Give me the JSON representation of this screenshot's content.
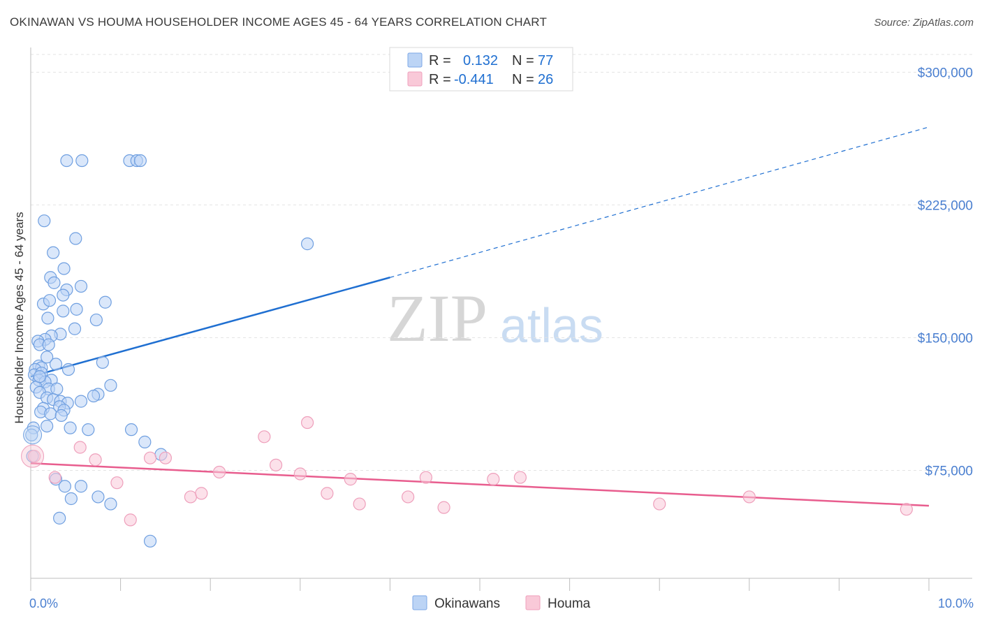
{
  "title": "OKINAWAN VS HOUMA HOUSEHOLDER INCOME AGES 45 - 64 YEARS CORRELATION CHART",
  "source": "Source: ZipAtlas.com",
  "watermark": {
    "zip": "ZIP",
    "atlas": "atlas"
  },
  "colors": {
    "blue": "#1f6fd1",
    "blue_fill": "#bcd4f5",
    "pink": "#e85d8e",
    "pink_fill": "#f9c9d8",
    "axis_text": "#4a7fd0",
    "grid": "#e3e3e3"
  },
  "legend": {
    "rows": [
      {
        "r_label": "R =",
        "r_value": "0.132",
        "n_label": "N =",
        "n_value": "77",
        "series": "blue"
      },
      {
        "r_label": "R =",
        "r_value": "-0.441",
        "n_label": "N =",
        "n_value": "26",
        "series": "pink"
      }
    ]
  },
  "chart_data": {
    "type": "scatter",
    "title": "OKINAWAN VS HOUMA HOUSEHOLDER INCOME AGES 45 - 64 YEARS CORRELATION CHART",
    "xlabel": "",
    "ylabel": "Householder Income Ages 45 - 64 years",
    "xlim": [
      0,
      10
    ],
    "ylim": [
      14000,
      310000
    ],
    "x_tick_labels": [
      "0.0%",
      "10.0%"
    ],
    "y_ticks": [
      75000,
      150000,
      225000,
      300000
    ],
    "y_tick_labels": [
      "$75,000",
      "$150,000",
      "$225,000",
      "$300,000"
    ],
    "grid": true,
    "legend_placement": "bottom-center",
    "series": [
      {
        "name": "Okinawans",
        "color": "#1f6fd1",
        "r": 0.132,
        "n": 77,
        "trend": {
          "x0": 0.0,
          "y0": 128000,
          "x1": 4.0,
          "y1": 184000,
          "dashed_to_x": 10.0,
          "dashed_to_y": 269000
        },
        "points": [
          [
            0.4,
            250000
          ],
          [
            0.57,
            250000
          ],
          [
            1.1,
            250000
          ],
          [
            1.18,
            250000
          ],
          [
            1.22,
            250000
          ],
          [
            0.15,
            216000
          ],
          [
            0.5,
            206000
          ],
          [
            0.25,
            198000
          ],
          [
            3.08,
            203000
          ],
          [
            0.37,
            189000
          ],
          [
            0.22,
            184000
          ],
          [
            0.26,
            181000
          ],
          [
            0.56,
            179000
          ],
          [
            0.4,
            177000
          ],
          [
            0.36,
            174000
          ],
          [
            0.14,
            169000
          ],
          [
            0.21,
            171000
          ],
          [
            0.83,
            170000
          ],
          [
            0.51,
            166000
          ],
          [
            0.36,
            165000
          ],
          [
            0.19,
            161000
          ],
          [
            0.73,
            160000
          ],
          [
            0.49,
            155000
          ],
          [
            0.33,
            152000
          ],
          [
            0.23,
            151000
          ],
          [
            0.16,
            149000
          ],
          [
            0.08,
            148000
          ],
          [
            0.1,
            146000
          ],
          [
            0.2,
            146000
          ],
          [
            0.18,
            139000
          ],
          [
            0.8,
            136000
          ],
          [
            0.28,
            135000
          ],
          [
            0.09,
            134000
          ],
          [
            0.12,
            133000
          ],
          [
            0.05,
            132000
          ],
          [
            0.42,
            132000
          ],
          [
            0.04,
            129000
          ],
          [
            0.12,
            130000
          ],
          [
            0.09,
            126000
          ],
          [
            0.23,
            126000
          ],
          [
            0.16,
            125000
          ],
          [
            0.89,
            123000
          ],
          [
            0.06,
            122000
          ],
          [
            0.2,
            121000
          ],
          [
            0.29,
            121000
          ],
          [
            0.1,
            119000
          ],
          [
            0.75,
            118000
          ],
          [
            0.7,
            117000
          ],
          [
            0.18,
            116000
          ],
          [
            0.25,
            115000
          ],
          [
            0.33,
            114000
          ],
          [
            0.56,
            114000
          ],
          [
            0.41,
            113000
          ],
          [
            0.32,
            111000
          ],
          [
            0.14,
            110000
          ],
          [
            0.37,
            109000
          ],
          [
            0.11,
            108000
          ],
          [
            0.22,
            107000
          ],
          [
            0.34,
            106000
          ],
          [
            0.18,
            100000
          ],
          [
            0.44,
            99000
          ],
          [
            0.64,
            98000
          ],
          [
            0.03,
            99000
          ],
          [
            1.12,
            98000
          ],
          [
            0.01,
            95000
          ],
          [
            1.27,
            91000
          ],
          [
            1.45,
            84000
          ],
          [
            0.28,
            70000
          ],
          [
            0.38,
            66000
          ],
          [
            0.56,
            66000
          ],
          [
            0.45,
            59000
          ],
          [
            0.75,
            60000
          ],
          [
            0.89,
            56000
          ],
          [
            0.32,
            48000
          ],
          [
            1.33,
            35000
          ],
          [
            0.02,
            83000
          ],
          [
            0.1,
            128000
          ]
        ]
      },
      {
        "name": "Houma",
        "color": "#e85d8e",
        "r": -0.441,
        "n": 26,
        "trend": {
          "x0": 0.0,
          "y0": 79000,
          "x1": 10.0,
          "y1": 55000
        },
        "points": [
          [
            0.04,
            83000
          ],
          [
            0.55,
            88000
          ],
          [
            0.72,
            81000
          ],
          [
            0.27,
            71000
          ],
          [
            0.96,
            68000
          ],
          [
            1.11,
            47000
          ],
          [
            1.33,
            82000
          ],
          [
            1.5,
            82000
          ],
          [
            1.78,
            60000
          ],
          [
            1.9,
            62000
          ],
          [
            2.1,
            74000
          ],
          [
            2.6,
            94000
          ],
          [
            2.73,
            78000
          ],
          [
            3.0,
            73000
          ],
          [
            3.08,
            102000
          ],
          [
            3.3,
            62000
          ],
          [
            3.56,
            70000
          ],
          [
            3.66,
            56000
          ],
          [
            4.2,
            60000
          ],
          [
            4.4,
            71000
          ],
          [
            4.6,
            54000
          ],
          [
            5.15,
            70000
          ],
          [
            5.45,
            71000
          ],
          [
            7.0,
            56000
          ],
          [
            8.0,
            60000
          ],
          [
            9.75,
            53000
          ]
        ]
      }
    ]
  },
  "bottom_legend": {
    "items": [
      {
        "label": "Okinawans",
        "series": "blue"
      },
      {
        "label": "Houma",
        "series": "pink"
      }
    ]
  }
}
